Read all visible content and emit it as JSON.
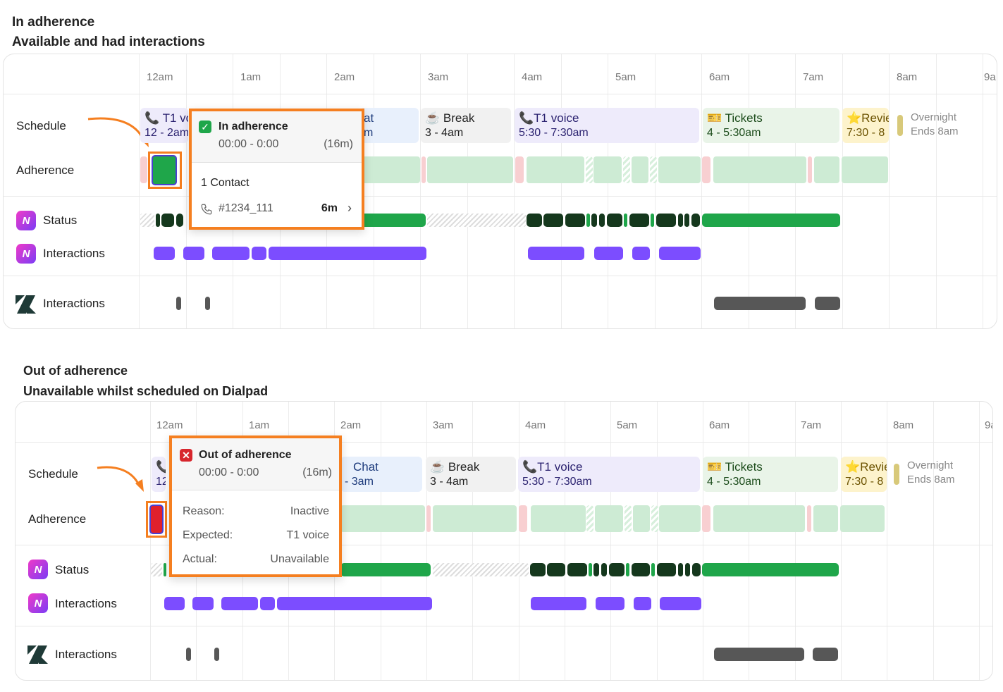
{
  "top": {
    "title": "In adherence",
    "subtitle": "Available and had interactions",
    "times": [
      "12am",
      "1am",
      "2am",
      "3am",
      "4am",
      "5am",
      "6am",
      "7am",
      "8am",
      "9a"
    ],
    "rows": {
      "schedule": "Schedule",
      "adherence": "Adherence",
      "status": "Status",
      "interactions": "Interactions",
      "zd_interactions": "Interactions"
    },
    "schedule": [
      {
        "name": "T1 vo",
        "time": "12 - 2am",
        "kind": "voice"
      },
      {
        "name": "at",
        "time": "m",
        "kind": "chat"
      },
      {
        "name": "Break",
        "time": "3 - 4am",
        "kind": "break",
        "icon": "coffee-icon"
      },
      {
        "name": "T1 voice",
        "time": "5:30 - 7:30am",
        "kind": "voice",
        "icon": "phone-icon"
      },
      {
        "name": "Tickets",
        "time": "4 - 5:30am",
        "kind": "tickets",
        "icon": "ticket-icon"
      },
      {
        "name": "Revie",
        "time": "7:30 - 8",
        "kind": "review",
        "icon": "star-icon"
      }
    ],
    "overnight": {
      "label": "Overnight",
      "ends": "Ends 8am"
    },
    "tooltip": {
      "status": "In adherence",
      "time": "00:00 - 0:00",
      "duration": "(16m)",
      "contacts": "1 Contact",
      "contact_id": "#1234_111",
      "contact_duration": "6m"
    }
  },
  "bottom": {
    "title": "Out of adherence",
    "subtitle": "Unavailable whilst scheduled on Dialpad",
    "times": [
      "12am",
      "1am",
      "2am",
      "3am",
      "4am",
      "5am",
      "6am",
      "7am",
      "8am",
      "9a"
    ],
    "rows": {
      "schedule": "Schedule",
      "adherence": "Adherence",
      "status": "Status",
      "interactions": "Interactions",
      "zd_interactions": "Interactions"
    },
    "schedule": [
      {
        "name": "",
        "time": "12",
        "kind": "voice"
      },
      {
        "name": "Chat",
        "time": "- 3am",
        "kind": "chat"
      },
      {
        "name": "Break",
        "time": "3 - 4am",
        "kind": "break",
        "icon": "coffee-icon"
      },
      {
        "name": "T1 voice",
        "time": "5:30 - 7:30am",
        "kind": "voice",
        "icon": "phone-icon"
      },
      {
        "name": "Tickets",
        "time": "4 - 5:30am",
        "kind": "tickets",
        "icon": "ticket-icon"
      },
      {
        "name": "Revie",
        "time": "7:30 - 8",
        "kind": "review",
        "icon": "star-icon"
      }
    ],
    "overnight": {
      "label": "Overnight",
      "ends": "Ends 8am"
    },
    "tooltip": {
      "status": "Out of adherence",
      "time": "00:00 - 0:00",
      "duration": "(16m)",
      "reason_label": "Reason:",
      "reason": "Inactive",
      "expected_label": "Expected:",
      "expected": "T1 voice",
      "actual_label": "Actual:",
      "actual": "Unavailable"
    }
  },
  "colors": {
    "highlight": "#f57f20",
    "in_adherence": "#1fa64a",
    "out_adherence": "#e0202c",
    "interaction": "#7c4dff"
  }
}
